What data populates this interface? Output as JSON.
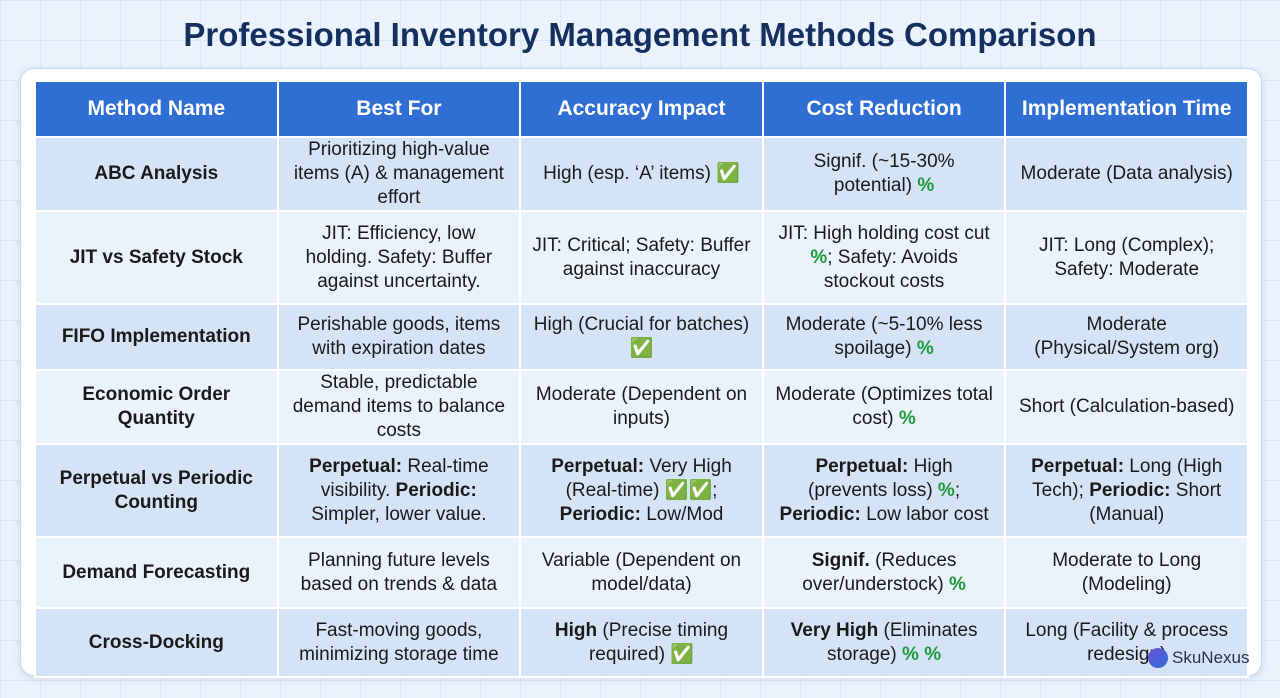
{
  "header": {
    "title": "Professional Inventory Management Methods Comparison"
  },
  "table": {
    "columns": [
      "Method Name",
      "Best For",
      "Accuracy Impact",
      "Cost Reduction",
      "Implementation Time"
    ],
    "rows": [
      [
        "ABC Analysis",
        "Prioritizing high-value items (A) & management effort",
        [
          {
            "text": "High (esp. ‘A’ items) "
          },
          {
            "text": "✅",
            "style": "icon"
          }
        ],
        [
          {
            "text": "Signif. (~15-30% potential) "
          },
          {
            "text": "%",
            "style": "icon"
          }
        ],
        "Moderate (Data analysis)"
      ],
      [
        "JIT vs Safety Stock",
        "JIT: Efficiency, low holding. Safety: Buffer against uncertainty.",
        "JIT: Critical; Safety: Buffer against inaccuracy",
        [
          {
            "text": "JIT: High holding cost cut "
          },
          {
            "text": "%",
            "style": "icon"
          },
          {
            "text": "; Safety: Avoids stockout costs"
          }
        ],
        "JIT: Long (Complex); Safety: Moderate"
      ],
      [
        "FIFO Implementation",
        "Perishable goods, items with expiration dates",
        [
          {
            "text": "High (Crucial for batches) "
          },
          {
            "text": "✅",
            "style": "icon"
          }
        ],
        [
          {
            "text": "Moderate (~5-10% less spoilage) "
          },
          {
            "text": "%",
            "style": "icon"
          }
        ],
        "Moderate (Physical/System org)"
      ],
      [
        "Economic Order Quantity",
        "Stable, predictable demand items to balance costs",
        "Moderate (Dependent on inputs)",
        [
          {
            "text": "Moderate (Optimizes total cost) "
          },
          {
            "text": "%",
            "style": "icon"
          }
        ],
        "Short (Calculation-based)"
      ],
      [
        "Perpetual vs Periodic Counting",
        [
          {
            "text": "Perpetual:",
            "style": "bold"
          },
          {
            "text": " Real-time visibility. "
          },
          {
            "text": "Periodic:",
            "style": "bold"
          },
          {
            "text": " Simpler, lower value."
          }
        ],
        [
          {
            "text": "Perpetual:",
            "style": "bold"
          },
          {
            "text": " Very High (Real-time) "
          },
          {
            "text": "✅✅",
            "style": "icon"
          },
          {
            "text": "; "
          },
          {
            "text": "Periodic:",
            "style": "bold"
          },
          {
            "text": " Low/Mod"
          }
        ],
        [
          {
            "text": "Perpetual:",
            "style": "bold"
          },
          {
            "text": " High (prevents loss) "
          },
          {
            "text": "%",
            "style": "icon"
          },
          {
            "text": "; "
          },
          {
            "text": "Periodic:",
            "style": "bold"
          },
          {
            "text": " Low labor cost"
          }
        ],
        [
          {
            "text": "Perpetual:",
            "style": "bold"
          },
          {
            "text": " Long (High Tech); "
          },
          {
            "text": "Periodic:",
            "style": "bold"
          },
          {
            "text": " Short (Manual)"
          }
        ]
      ],
      [
        "Demand Forecasting",
        "Planning future levels based on trends & data",
        "Variable (Dependent on model/data)",
        [
          {
            "text": "Signif.",
            "style": "bold"
          },
          {
            "text": " (Reduces over/understock) "
          },
          {
            "text": "%",
            "style": "icon"
          }
        ],
        "Moderate to Long (Modeling)"
      ],
      [
        "Cross-Docking",
        "Fast-moving goods, minimizing storage time",
        [
          {
            "text": "High",
            "style": "bold"
          },
          {
            "text": " (Precise timing required) "
          },
          {
            "text": "✅",
            "style": "icon"
          }
        ],
        [
          {
            "text": "Very High",
            "style": "bold"
          },
          {
            "text": " (Eliminates storage) "
          },
          {
            "text": "% %",
            "style": "icon"
          }
        ],
        "Long (Facility & process redesign)"
      ]
    ]
  },
  "footer": {
    "brand": "SkuNexus"
  }
}
